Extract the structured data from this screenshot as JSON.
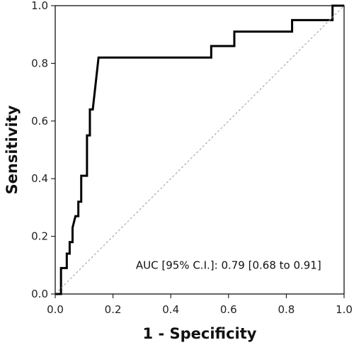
{
  "chart_data": {
    "type": "line",
    "title": "",
    "xlabel": "1 - Specificity",
    "ylabel": "Sensitivity",
    "xlim": [
      0,
      1
    ],
    "ylim": [
      0,
      1
    ],
    "x_ticks": [
      "0.0",
      "0.2",
      "0.4",
      "0.6",
      "0.8",
      "1.0"
    ],
    "y_ticks": [
      "0.0",
      "0.2",
      "0.4",
      "0.6",
      "0.8",
      "1.0"
    ],
    "grid": false,
    "legend": "none",
    "annotation": "AUC [95% C.I.]: 0.79 [0.68 to 0.91]",
    "colors": {
      "curve": "#000000",
      "reference": "#999999"
    },
    "series": [
      {
        "style": "step",
        "x": [
          0.0,
          0.02,
          0.02,
          0.04,
          0.04,
          0.05,
          0.05,
          0.06,
          0.06,
          0.07,
          0.08,
          0.08,
          0.09,
          0.09,
          0.1,
          0.11,
          0.11,
          0.12,
          0.12,
          0.13,
          0.15,
          0.15,
          0.54,
          0.54,
          0.62,
          0.62,
          0.82,
          0.82,
          0.96,
          0.96,
          1.0
        ],
        "y": [
          0.0,
          0.0,
          0.09,
          0.09,
          0.14,
          0.14,
          0.18,
          0.18,
          0.23,
          0.27,
          0.27,
          0.32,
          0.32,
          0.41,
          0.41,
          0.41,
          0.55,
          0.55,
          0.64,
          0.64,
          0.82,
          0.82,
          0.82,
          0.86,
          0.86,
          0.91,
          0.91,
          0.95,
          0.95,
          1.0,
          1.0
        ]
      },
      {
        "style": "dashed",
        "x": [
          0,
          1
        ],
        "y": [
          0,
          1
        ]
      }
    ]
  }
}
